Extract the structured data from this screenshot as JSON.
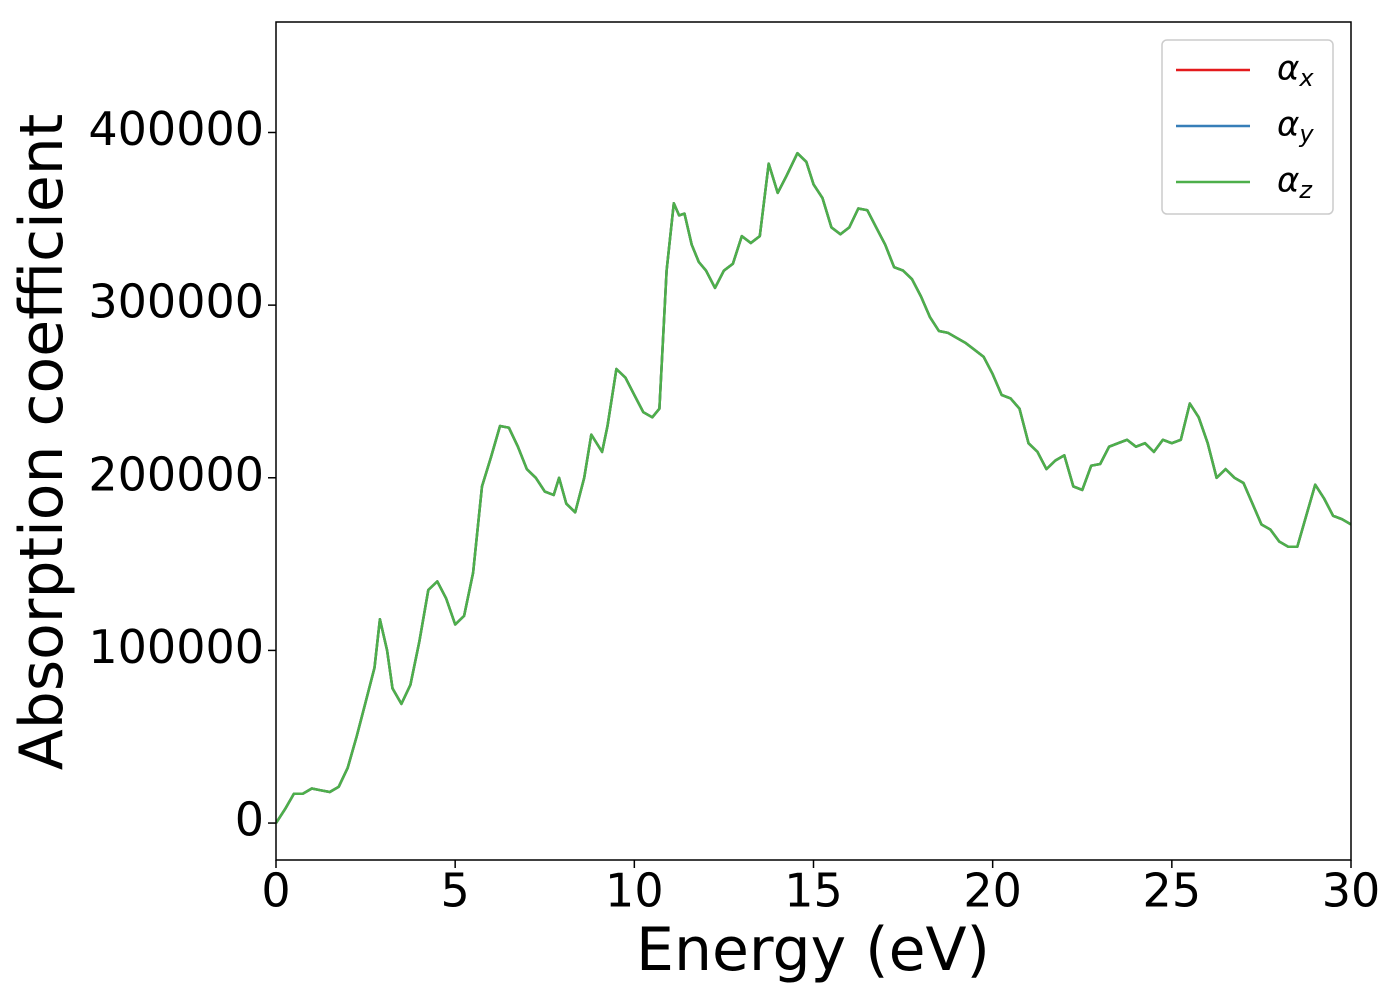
{
  "chart_data": {
    "type": "line",
    "xlabel": "Energy (eV)",
    "ylabel": "Absorption coefficient",
    "x": [
      0,
      0.25,
      0.5,
      0.75,
      1.0,
      1.25,
      1.5,
      1.75,
      2.0,
      2.25,
      2.5,
      2.75,
      2.9,
      3.1,
      3.25,
      3.5,
      3.75,
      4.0,
      4.25,
      4.5,
      4.75,
      5.0,
      5.25,
      5.5,
      5.75,
      6.0,
      6.25,
      6.5,
      6.75,
      7.0,
      7.25,
      7.5,
      7.75,
      7.9,
      8.1,
      8.35,
      8.6,
      8.8,
      9.1,
      9.25,
      9.5,
      9.75,
      10.0,
      10.25,
      10.5,
      10.7,
      10.9,
      11.1,
      11.25,
      11.4,
      11.6,
      11.8,
      12.0,
      12.25,
      12.5,
      12.75,
      13.0,
      13.25,
      13.5,
      13.75,
      14.0,
      14.25,
      14.55,
      14.8,
      15.0,
      15.25,
      15.5,
      15.75,
      16.0,
      16.25,
      16.5,
      16.75,
      17.0,
      17.25,
      17.5,
      17.75,
      18.0,
      18.25,
      18.5,
      18.75,
      19.0,
      19.25,
      19.5,
      19.75,
      20.0,
      20.25,
      20.5,
      20.75,
      21.0,
      21.25,
      21.5,
      21.75,
      22.0,
      22.25,
      22.5,
      22.75,
      23.0,
      23.25,
      23.5,
      23.75,
      24.0,
      24.25,
      24.5,
      24.75,
      25.0,
      25.25,
      25.5,
      25.75,
      26.0,
      26.25,
      26.5,
      26.75,
      27.0,
      27.25,
      27.5,
      27.75,
      28.0,
      28.25,
      28.5,
      28.75,
      29.0,
      29.25,
      29.5,
      29.75,
      30.0
    ],
    "series": [
      {
        "name": "αx",
        "color": "#e41a1c",
        "values": [
          0,
          8000,
          17000,
          17000,
          20000,
          19000,
          18000,
          21000,
          32000,
          50000,
          70000,
          90000,
          118000,
          100000,
          78000,
          69000,
          80000,
          105000,
          135000,
          140000,
          130000,
          115000,
          120000,
          145000,
          195000,
          212000,
          230000,
          229000,
          218000,
          205000,
          200000,
          192000,
          190000,
          200000,
          185000,
          180000,
          200000,
          225000,
          215000,
          230000,
          263000,
          258000,
          248000,
          238000,
          235000,
          240000,
          320000,
          359000,
          352000,
          353000,
          335000,
          325000,
          320000,
          310000,
          320000,
          324000,
          340000,
          336000,
          340000,
          382000,
          365000,
          375000,
          388000,
          383000,
          370000,
          362000,
          345000,
          341000,
          345000,
          356000,
          355000,
          345000,
          335000,
          322000,
          320000,
          315000,
          305000,
          293000,
          285000,
          284000,
          281000,
          278000,
          274000,
          270000,
          260000,
          248000,
          246000,
          240000,
          220000,
          215000,
          205000,
          210000,
          213000,
          195000,
          193000,
          207000,
          208000,
          218000,
          220000,
          222000,
          218000,
          220000,
          215000,
          222000,
          220000,
          222000,
          243000,
          235000,
          220000,
          200000,
          205000,
          200000,
          197000,
          185000,
          173000,
          170000,
          163000,
          160000,
          160000,
          178000,
          196000,
          188000,
          178000,
          176000,
          173000
        ]
      },
      {
        "name": "αy",
        "color": "#377eb8",
        "values": [
          0,
          8000,
          17000,
          17000,
          20000,
          19000,
          18000,
          21000,
          32000,
          50000,
          70000,
          90000,
          118000,
          100000,
          78000,
          69000,
          80000,
          105000,
          135000,
          140000,
          130000,
          115000,
          120000,
          145000,
          195000,
          212000,
          230000,
          229000,
          218000,
          205000,
          200000,
          192000,
          190000,
          200000,
          185000,
          180000,
          200000,
          225000,
          215000,
          230000,
          263000,
          258000,
          248000,
          238000,
          235000,
          240000,
          320000,
          359000,
          352000,
          353000,
          335000,
          325000,
          320000,
          310000,
          320000,
          324000,
          340000,
          336000,
          340000,
          382000,
          365000,
          375000,
          388000,
          383000,
          370000,
          362000,
          345000,
          341000,
          345000,
          356000,
          355000,
          345000,
          335000,
          322000,
          320000,
          315000,
          305000,
          293000,
          285000,
          284000,
          281000,
          278000,
          274000,
          270000,
          260000,
          248000,
          246000,
          240000,
          220000,
          215000,
          205000,
          210000,
          213000,
          195000,
          193000,
          207000,
          208000,
          218000,
          220000,
          222000,
          218000,
          220000,
          215000,
          222000,
          220000,
          222000,
          243000,
          235000,
          220000,
          200000,
          205000,
          200000,
          197000,
          185000,
          173000,
          170000,
          163000,
          160000,
          160000,
          178000,
          196000,
          188000,
          178000,
          176000,
          173000
        ]
      },
      {
        "name": "αz",
        "color": "#4daf4a",
        "values": [
          0,
          8000,
          17000,
          17000,
          20000,
          19000,
          18000,
          21000,
          32000,
          50000,
          70000,
          90000,
          118000,
          100000,
          78000,
          69000,
          80000,
          105000,
          135000,
          140000,
          130000,
          115000,
          120000,
          145000,
          195000,
          212000,
          230000,
          229000,
          218000,
          205000,
          200000,
          192000,
          190000,
          200000,
          185000,
          180000,
          200000,
          225000,
          215000,
          230000,
          263000,
          258000,
          248000,
          238000,
          235000,
          240000,
          320000,
          359000,
          352000,
          353000,
          335000,
          325000,
          320000,
          310000,
          320000,
          324000,
          340000,
          336000,
          340000,
          382000,
          365000,
          375000,
          388000,
          383000,
          370000,
          362000,
          345000,
          341000,
          345000,
          356000,
          355000,
          345000,
          335000,
          322000,
          320000,
          315000,
          305000,
          293000,
          285000,
          284000,
          281000,
          278000,
          274000,
          270000,
          260000,
          248000,
          246000,
          240000,
          220000,
          215000,
          205000,
          210000,
          213000,
          195000,
          193000,
          207000,
          208000,
          218000,
          220000,
          222000,
          218000,
          220000,
          215000,
          222000,
          220000,
          222000,
          243000,
          235000,
          220000,
          200000,
          205000,
          200000,
          197000,
          185000,
          173000,
          170000,
          163000,
          160000,
          160000,
          178000,
          196000,
          188000,
          178000,
          176000,
          173000
        ]
      }
    ],
    "xlim": [
      0,
      30
    ],
    "xticks": [
      0,
      5,
      10,
      15,
      20,
      25,
      30
    ],
    "ylim": [
      -21400,
      464000
    ],
    "yticks": [
      0,
      100000,
      200000,
      300000,
      400000
    ],
    "legend": "upper right",
    "grid": false
  }
}
